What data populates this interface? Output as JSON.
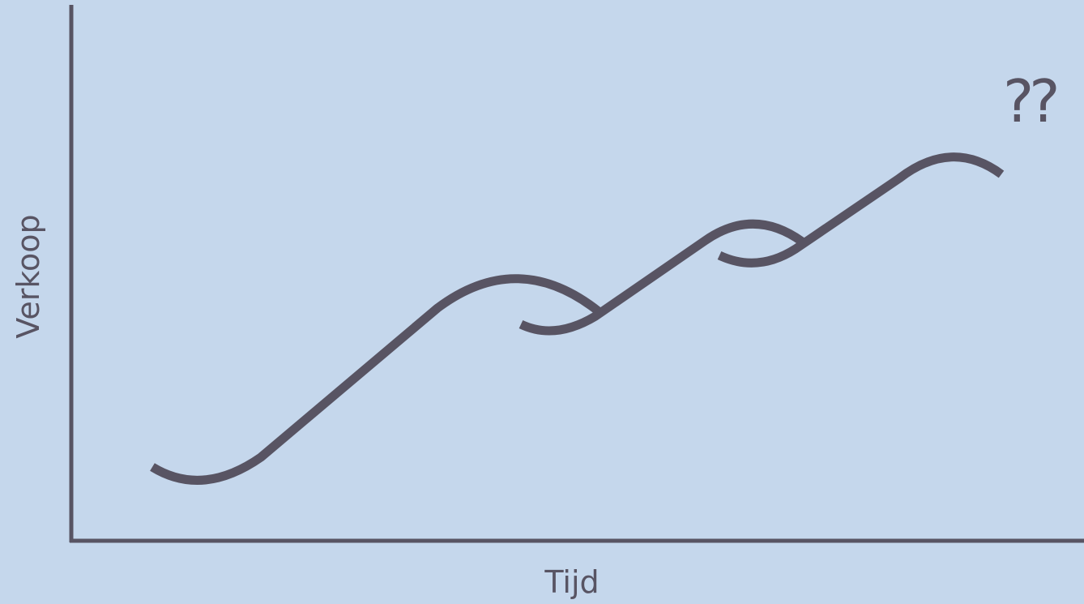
{
  "diagram": {
    "type": "s-curve-growth",
    "x_axis_label": "Tijd",
    "y_axis_label": "Verkoop",
    "annotation": "??",
    "stages": 4,
    "colors": {
      "background": "#c5d7ec",
      "line": "#585463"
    }
  }
}
